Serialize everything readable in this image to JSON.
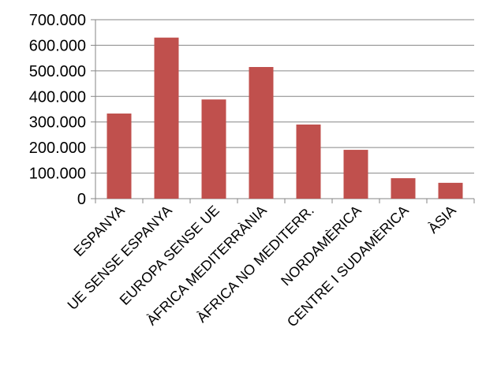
{
  "chart_data": {
    "type": "bar",
    "categories": [
      "ESPANYA",
      "UE SENSE ESPANYA",
      "EUROPA SENSE UE",
      "ÀFRICA MEDITERRÀNIA",
      "ÀFRICA NO MEDITERR.",
      "NORDAMÈRICA",
      "CENTRE I SUDAMÈRICA",
      "ÀSIA"
    ],
    "values": [
      333000,
      630000,
      388000,
      515000,
      290000,
      191000,
      80000,
      62000
    ],
    "ylim": [
      0,
      700000
    ],
    "yticks": [
      0,
      100000,
      200000,
      300000,
      400000,
      500000,
      600000,
      700000
    ],
    "ytick_labels": [
      "0",
      "100.000",
      "200.000",
      "300.000",
      "400.000",
      "500.000",
      "600.000",
      "700.000"
    ],
    "grid": true,
    "bar_color": "#C0504D",
    "title": "",
    "xlabel": "",
    "ylabel": ""
  }
}
